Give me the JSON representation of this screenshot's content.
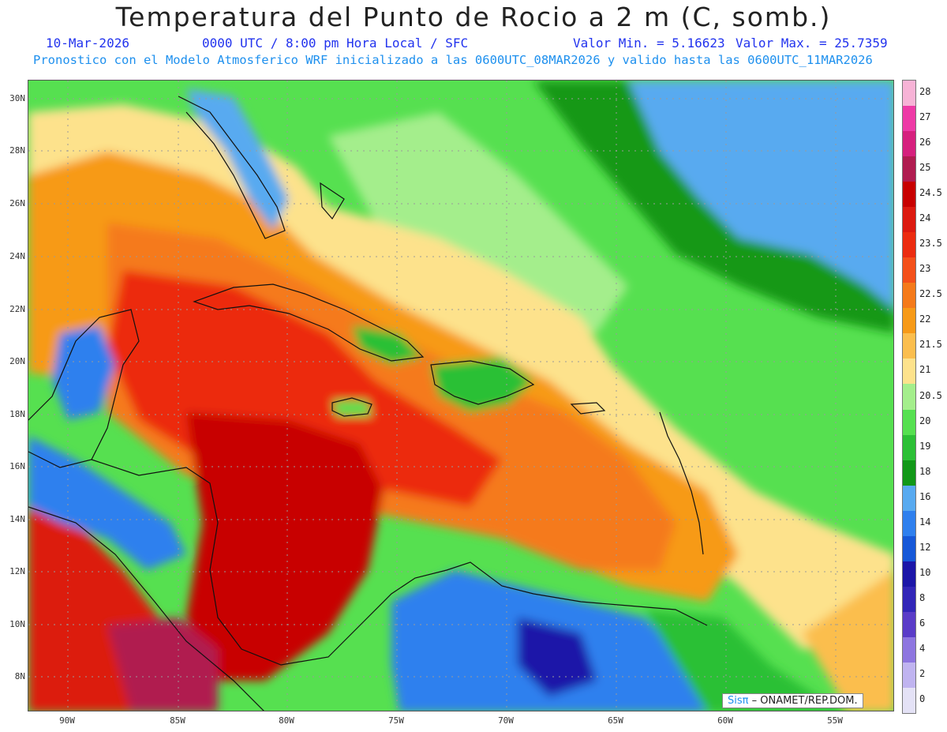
{
  "header": {
    "title": "Temperatura del Punto de Rocio a 2 m (C, somb.)",
    "date": "10-Mar-2026",
    "time": "0000 UTC / 8:00 pm Hora Local / SFC",
    "min": "Valor Min. = 5.16623",
    "max": "Valor Max. = 25.7359",
    "model": "Pronostico con el Modelo Atmosferico WRF inicializado a las 0600UTC_08MAR2026 y valido hasta las  0600UTC_11MAR2026"
  },
  "axes": {
    "lat_labels": [
      "30N",
      "28N",
      "26N",
      "24N",
      "22N",
      "20N",
      "18N",
      "16N",
      "14N",
      "12N",
      "10N",
      "8N"
    ],
    "lon_labels": [
      "90W",
      "85W",
      "80W",
      "75W",
      "70W",
      "65W",
      "60W",
      "55W"
    ]
  },
  "legend": {
    "labels": [
      "28",
      "27",
      "26",
      "25",
      "24.5",
      "24",
      "23.5",
      "23",
      "22.5",
      "22",
      "21.5",
      "21",
      "20.5",
      "20",
      "19",
      "18",
      "16",
      "14",
      "12",
      "10",
      "8",
      "6",
      "4",
      "2",
      "0"
    ],
    "colors": [
      "#f7b3d6",
      "#ee3aa6",
      "#d6207e",
      "#b01c50",
      "#c80000",
      "#dc1a10",
      "#ec2c10",
      "#f4501a",
      "#f57a1a",
      "#f79a18",
      "#fbbe4e",
      "#fde28c",
      "#a4ee8c",
      "#56e050",
      "#2cc036",
      "#129818",
      "#58aaf0",
      "#2f80ee",
      "#1658d8",
      "#1c16a8",
      "#3226b8",
      "#5a3cc8",
      "#8e76e0",
      "#c0b4f0",
      "#e4e2f6"
    ]
  },
  "credit": {
    "brand": "Sisπ",
    "text": "– ONAMET/REP.DOM."
  }
}
